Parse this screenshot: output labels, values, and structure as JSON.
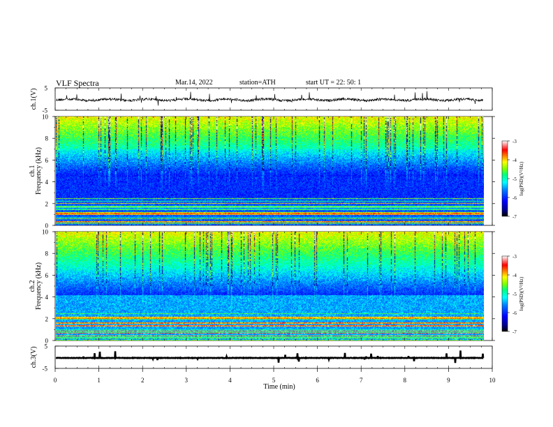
{
  "header": {
    "title": "VLF  Spectra",
    "date": "Mar.14, 2022",
    "station": "station=ATH",
    "start_ut": "start  UT  =   22: 50: 1"
  },
  "chart_data": [
    {
      "type": "line",
      "panel": "ch1-waveform",
      "ylabel": "ch.1(V)",
      "ylim": [
        -5,
        5
      ],
      "yticks": [
        "5",
        "-5"
      ],
      "xlim": [
        0,
        10
      ],
      "x_data_range": [
        0,
        9.8
      ]
    },
    {
      "type": "heatmap",
      "panel": "ch1-spectrogram",
      "ylabel": "ch.1\nFrequency (kHz)",
      "ylim": [
        0,
        10
      ],
      "yticks": [
        "0",
        "2",
        "4",
        "6",
        "8",
        "10"
      ],
      "xlim": [
        0,
        10
      ],
      "x_data_range": [
        0,
        9.8
      ],
      "colorbar": {
        "label": "log(PSD)(V²/Hz)",
        "range": [
          -7,
          -3
        ],
        "ticks": [
          "-3",
          "-4",
          "-5",
          "-6",
          "-7"
        ]
      }
    },
    {
      "type": "heatmap",
      "panel": "ch2-spectrogram",
      "ylabel": "ch.2\nFrequency (kHz)",
      "ylim": [
        0,
        10
      ],
      "yticks": [
        "0",
        "2",
        "4",
        "6",
        "8",
        "10"
      ],
      "xlim": [
        0,
        10
      ],
      "x_data_range": [
        0,
        9.8
      ],
      "colorbar": {
        "label": "log(PSD)(V²/Hz)",
        "range": [
          -7,
          -3
        ],
        "ticks": [
          "-3",
          "-4",
          "-5",
          "-6",
          "-7"
        ]
      }
    },
    {
      "type": "line",
      "panel": "ch3-waveform",
      "ylabel": "ch.3(V)",
      "ylim": [
        -5,
        5
      ],
      "yticks": [
        "5",
        "-5"
      ],
      "xlim": [
        0,
        10
      ],
      "xlabel": "Time  (min)",
      "xticks": [
        "0",
        "1",
        "2",
        "3",
        "4",
        "5",
        "6",
        "7",
        "8",
        "9",
        "10"
      ],
      "x_data_range": [
        0,
        9.8
      ]
    }
  ],
  "colors": {
    "colormap": [
      "#000000",
      "#00008b",
      "#0000ff",
      "#0080ff",
      "#00ffff",
      "#00ff80",
      "#80ff00",
      "#ffff00",
      "#ff8000",
      "#ff0000",
      "#ffffff"
    ],
    "trace": "#000000"
  }
}
